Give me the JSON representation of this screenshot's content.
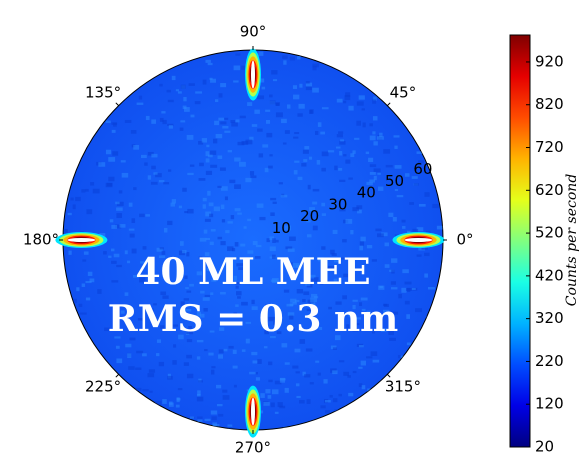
{
  "chart_data": {
    "type": "polar-heatmap",
    "thetaticks": [
      {
        "value": 0,
        "label": "0°"
      },
      {
        "value": 45,
        "label": "45°"
      },
      {
        "value": 90,
        "label": "90°"
      },
      {
        "value": 135,
        "label": "135°"
      },
      {
        "value": 180,
        "label": "180°"
      },
      {
        "value": 225,
        "label": "225°"
      },
      {
        "value": 270,
        "label": "270°"
      },
      {
        "value": 315,
        "label": "315°"
      }
    ],
    "rlim": [
      0,
      62
    ],
    "rticks": [
      10,
      20,
      30,
      40,
      50,
      60
    ],
    "spots": {
      "theta": [
        0,
        90,
        180,
        270
      ],
      "r": [
        54,
        54,
        56,
        56
      ],
      "values": [
        975,
        975,
        975,
        975
      ]
    },
    "clim": [
      20,
      983
    ],
    "cticks": [
      20,
      120,
      220,
      320,
      420,
      520,
      620,
      720,
      820,
      920
    ],
    "colorbar_label": "Counts per second",
    "annotations": [
      "40 ML MEE",
      "RMS = 0.3 nm"
    ]
  }
}
